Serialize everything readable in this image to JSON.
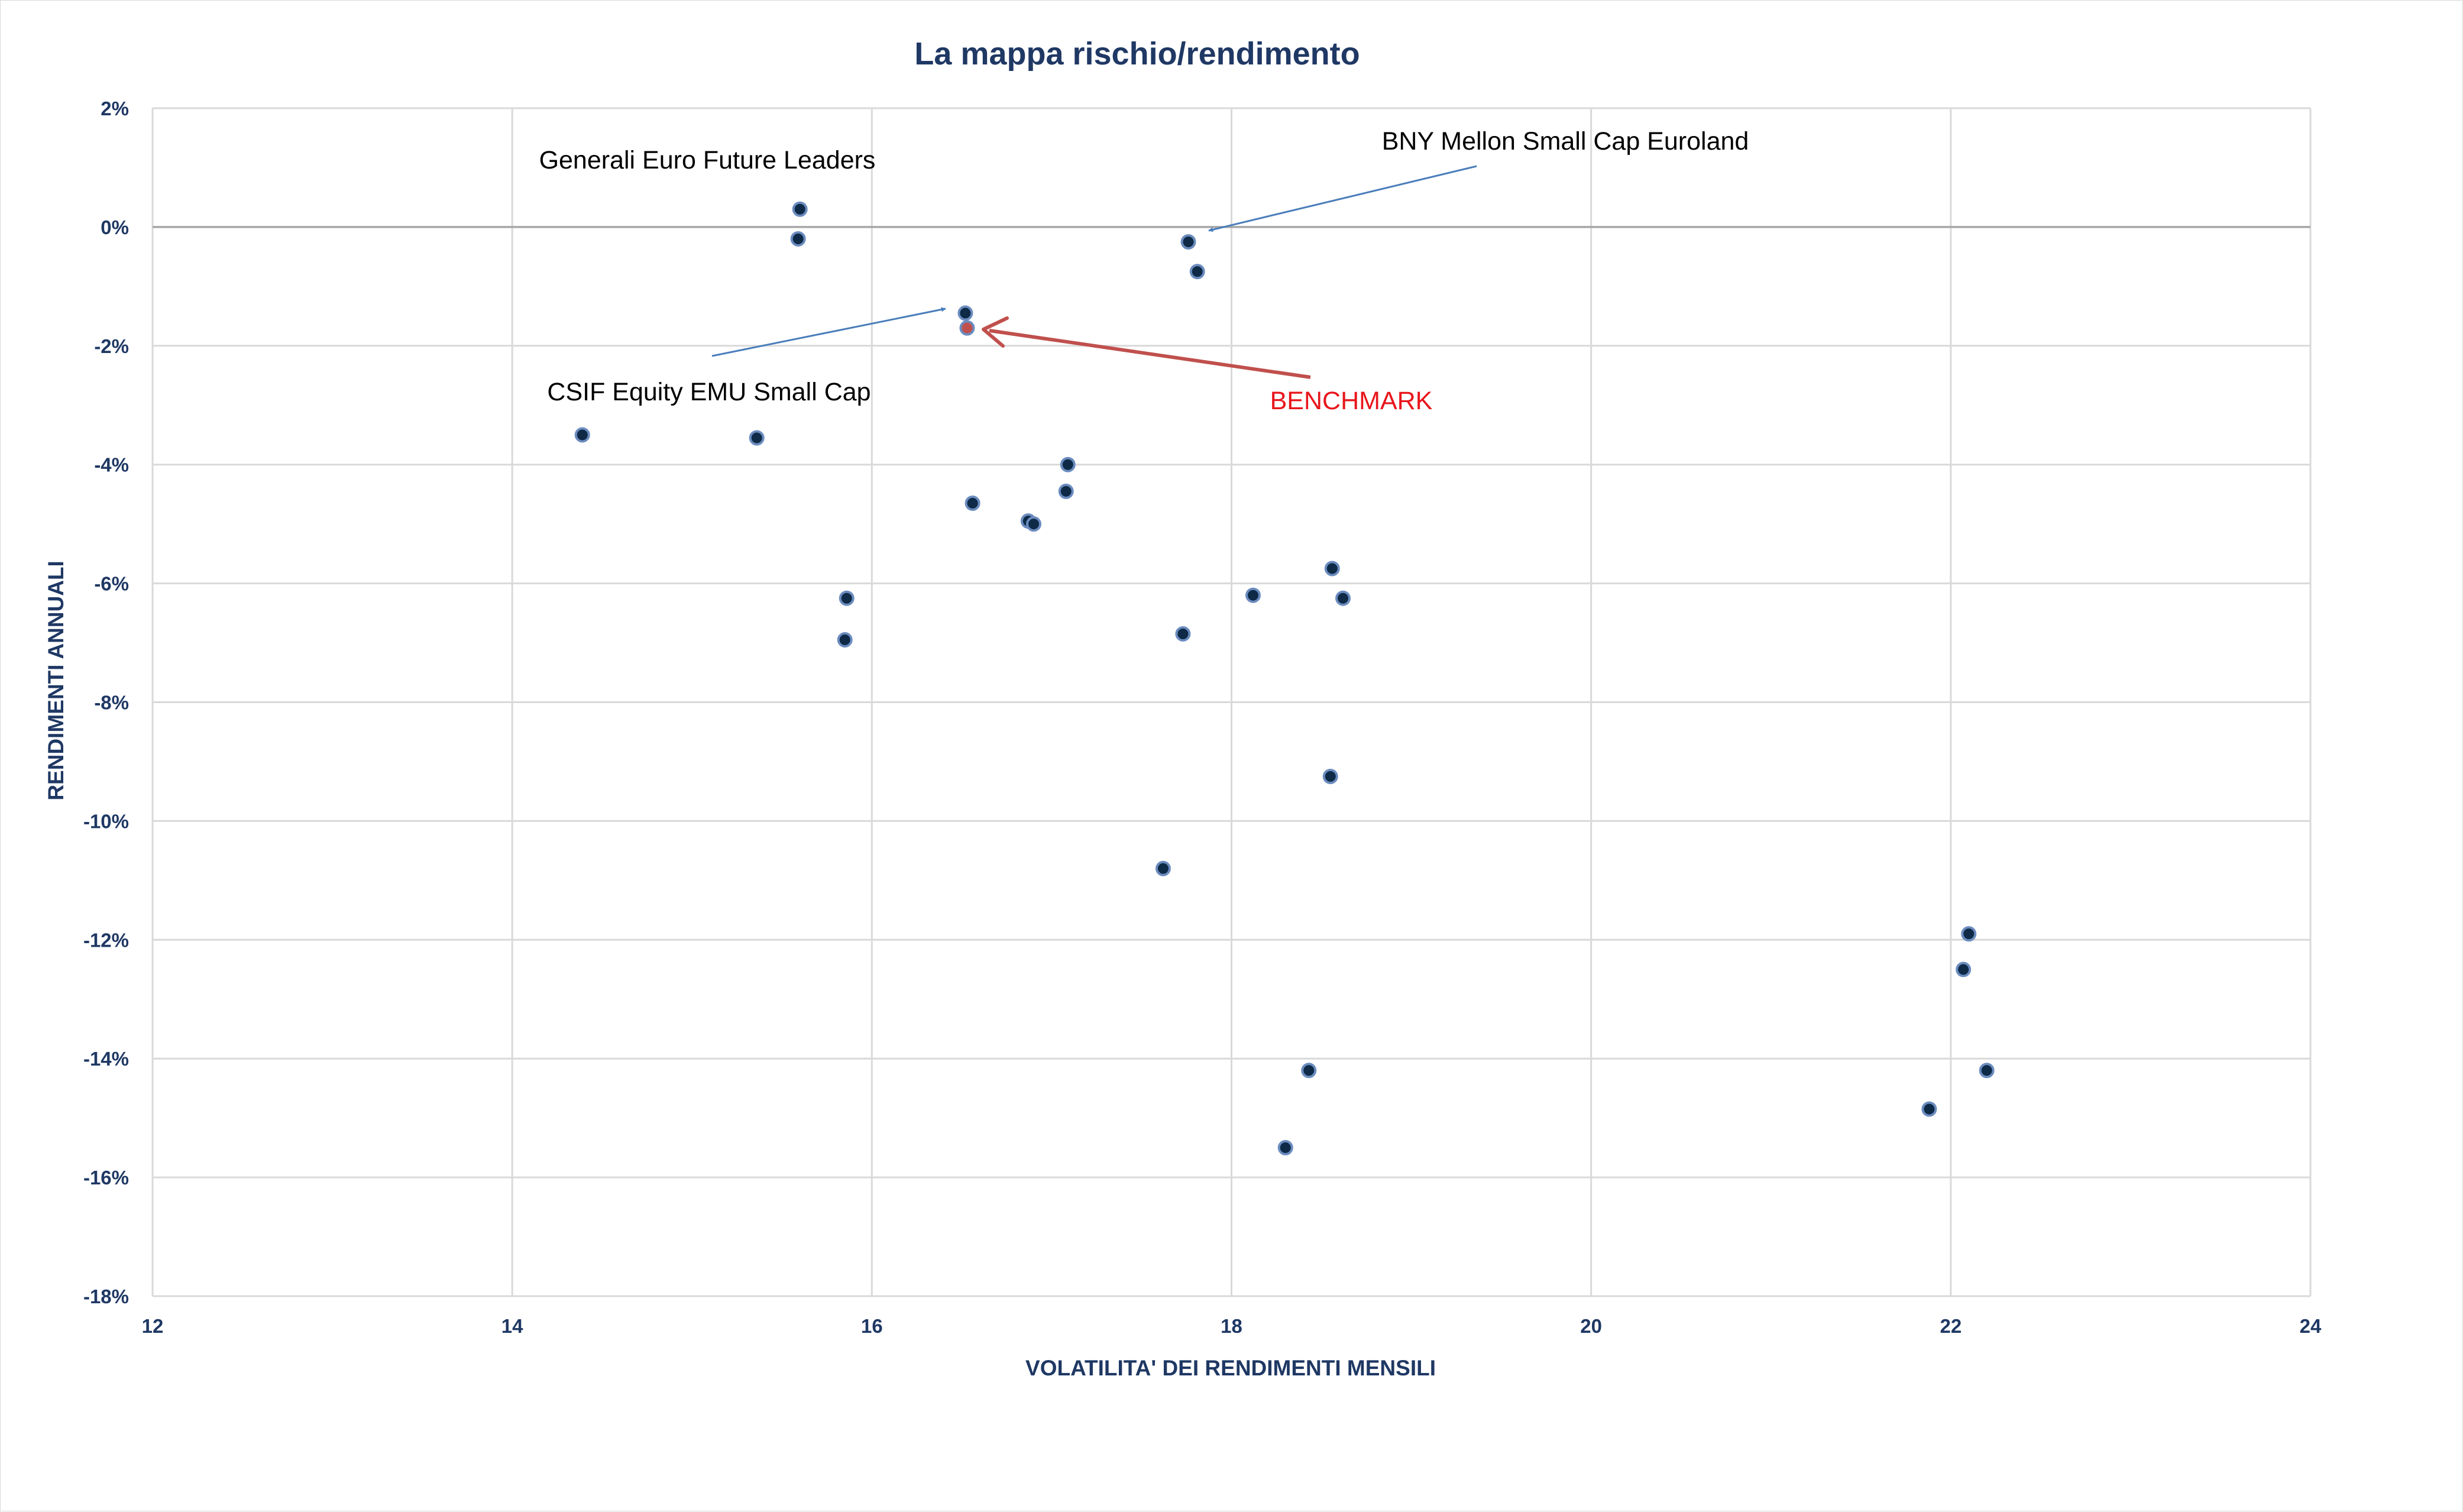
{
  "chart_data": {
    "type": "scatter",
    "title": "La mappa rischio/rendimento",
    "xlabel": "VOLATILITA' DEI RENDIMENTI MENSILI",
    "ylabel": "RENDIMENTI ANNUALI",
    "xlim": [
      12,
      24
    ],
    "ylim": [
      -18,
      2
    ],
    "x_ticks": [
      12,
      14,
      16,
      18,
      20,
      22,
      24
    ],
    "y_ticks": [
      2,
      0,
      -2,
      -4,
      -6,
      -8,
      -10,
      -12,
      -14,
      -16,
      -18
    ],
    "y_tick_format": "percent",
    "grid": true,
    "legend": "none",
    "colors": {
      "point_fill": "#0e2a47",
      "point_edge": "#6b8cbf",
      "benchmark_fill": "#c0504d",
      "grid": "#d9d9d9",
      "arrow_blue": "#4a7ebb",
      "arrow_red": "#c0504d",
      "text_dark": "#1f3864",
      "annotation_red": "#e8151b"
    },
    "points": [
      {
        "x": 15.6,
        "y": 0.3
      },
      {
        "x": 15.59,
        "y": -0.2
      },
      {
        "x": 17.76,
        "y": -0.25
      },
      {
        "x": 17.81,
        "y": -0.75
      },
      {
        "x": 16.52,
        "y": -1.45
      },
      {
        "x": 16.53,
        "y": -1.7,
        "benchmark": true
      },
      {
        "x": 14.39,
        "y": -3.5
      },
      {
        "x": 15.36,
        "y": -3.55
      },
      {
        "x": 17.09,
        "y": -4.0
      },
      {
        "x": 17.08,
        "y": -4.45
      },
      {
        "x": 16.56,
        "y": -4.65
      },
      {
        "x": 16.87,
        "y": -4.95
      },
      {
        "x": 16.9,
        "y": -5.0
      },
      {
        "x": 18.56,
        "y": -5.75
      },
      {
        "x": 18.12,
        "y": -6.2
      },
      {
        "x": 18.62,
        "y": -6.25
      },
      {
        "x": 15.86,
        "y": -6.25
      },
      {
        "x": 15.85,
        "y": -6.95
      },
      {
        "x": 17.73,
        "y": -6.85
      },
      {
        "x": 18.55,
        "y": -9.25
      },
      {
        "x": 17.62,
        "y": -10.8
      },
      {
        "x": 22.1,
        "y": -11.9
      },
      {
        "x": 22.07,
        "y": -12.5
      },
      {
        "x": 22.2,
        "y": -14.2
      },
      {
        "x": 21.88,
        "y": -14.85
      },
      {
        "x": 18.43,
        "y": -14.2
      },
      {
        "x": 18.3,
        "y": -15.5
      }
    ],
    "annotations": [
      {
        "id": "generali",
        "text": "Generali Euro Future Leaders",
        "color": "#000000",
        "arrow": false
      },
      {
        "id": "bny",
        "text": "BNY Mellon Small Cap Euroland",
        "color": "#000000",
        "arrow": true
      },
      {
        "id": "csif",
        "text": "CSIF Equity EMU Small Cap",
        "color": "#000000",
        "arrow": true
      },
      {
        "id": "benchmark",
        "text": "BENCHMARK",
        "color": "#e8151b",
        "arrow": true
      }
    ]
  }
}
